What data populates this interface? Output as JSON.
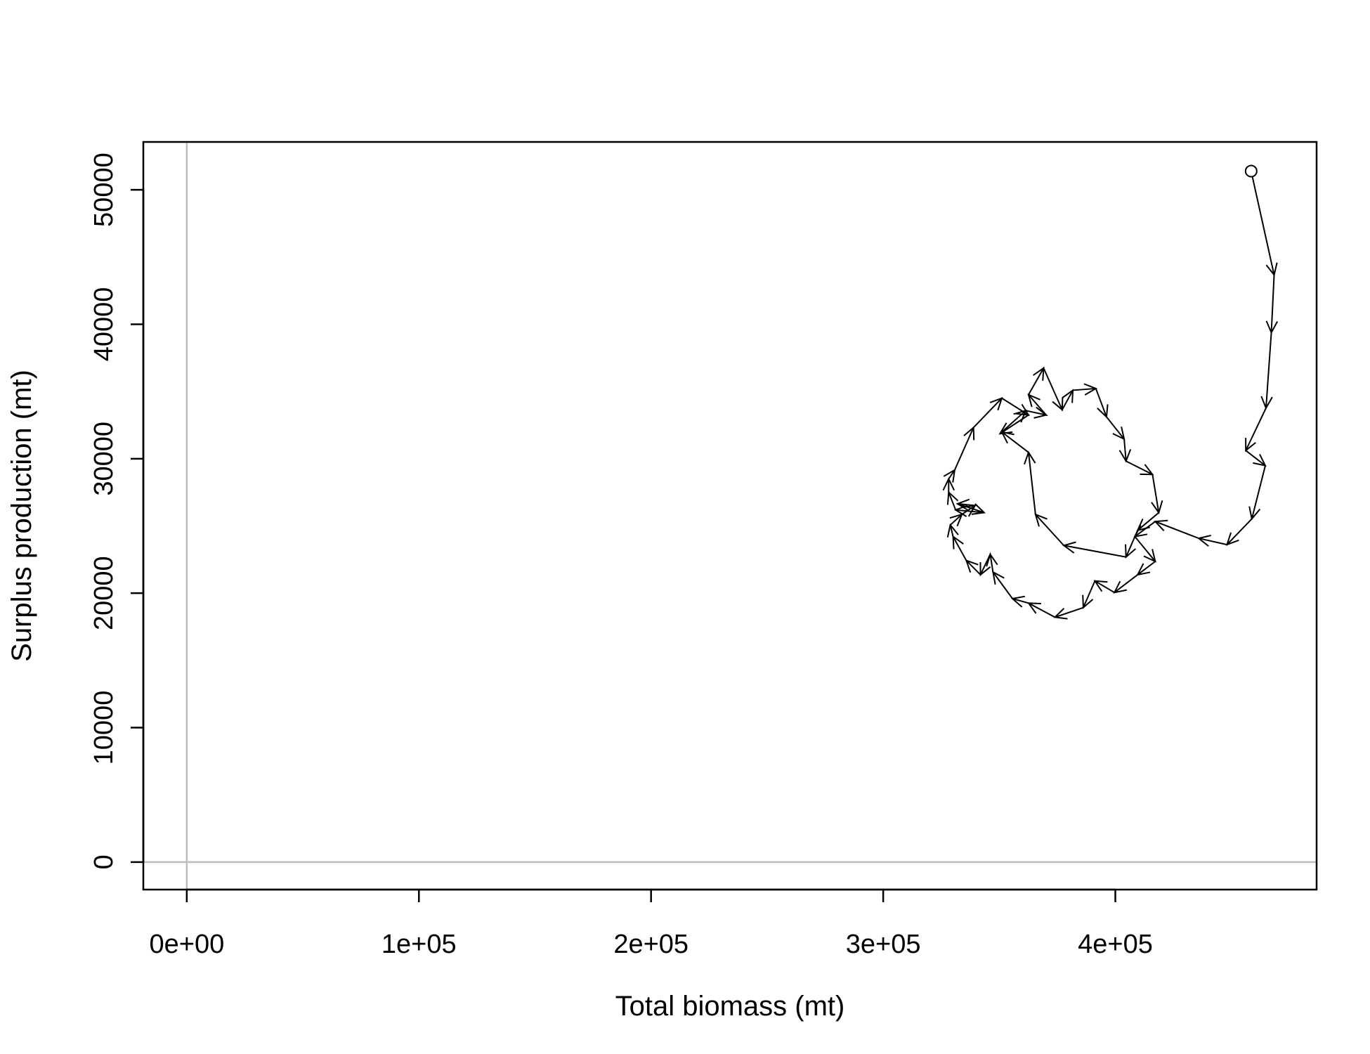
{
  "chart_data": {
    "type": "line",
    "x_label": "Total biomass (mt)",
    "y_label": "Surplus production (mt)",
    "xlim": [
      -18720,
      486700
    ],
    "ylim": [
      -2045,
      53560
    ],
    "xticks": [
      {
        "value": 0,
        "label": "0e+00"
      },
      {
        "value": 100000,
        "label": "1e+05"
      },
      {
        "value": 200000,
        "label": "2e+05"
      },
      {
        "value": 300000,
        "label": "3e+05"
      },
      {
        "value": 400000,
        "label": "4e+05"
      }
    ],
    "yticks": [
      0,
      10000,
      20000,
      30000,
      40000,
      50000
    ],
    "hlines": [
      0
    ],
    "vlines": [
      0
    ],
    "reference_color": "#bebebe",
    "color": "#000000",
    "x": [
      458500,
      468400,
      467200,
      464900,
      456200,
      464600,
      458800,
      448100,
      435900,
      417200,
      408400,
      417200,
      409600,
      399600,
      391200,
      386200,
      374000,
      362600,
      355700,
      347300,
      346100,
      341900,
      335800,
      330100,
      328900,
      333900,
      339600,
      332000,
      343500,
      331200,
      328200,
      328200,
      330800,
      338900,
      351100,
      362600,
      350300,
      361400,
      370200,
      362600,
      369100,
      377100,
      381700,
      391600,
      396200,
      403800,
      404600,
      416000,
      418700,
      409600,
      404600,
      377800,
      365600,
      362600,
      351100
    ],
    "values": [
      51390,
      43670,
      39380,
      33770,
      30610,
      29490,
      25530,
      23610,
      24080,
      25330,
      24210,
      22360,
      21370,
      20050,
      20910,
      18930,
      18210,
      19260,
      19590,
      21570,
      22890,
      21370,
      22430,
      24210,
      25070,
      25860,
      26520,
      26650,
      25990,
      26190,
      27510,
      28500,
      29160,
      32320,
      34500,
      33250,
      31860,
      33580,
      33250,
      34760,
      36740,
      33640,
      35090,
      35220,
      33110,
      31460,
      29820,
      28830,
      25990,
      24670,
      22690,
      23550,
      25860,
      30470,
      31990
    ]
  }
}
